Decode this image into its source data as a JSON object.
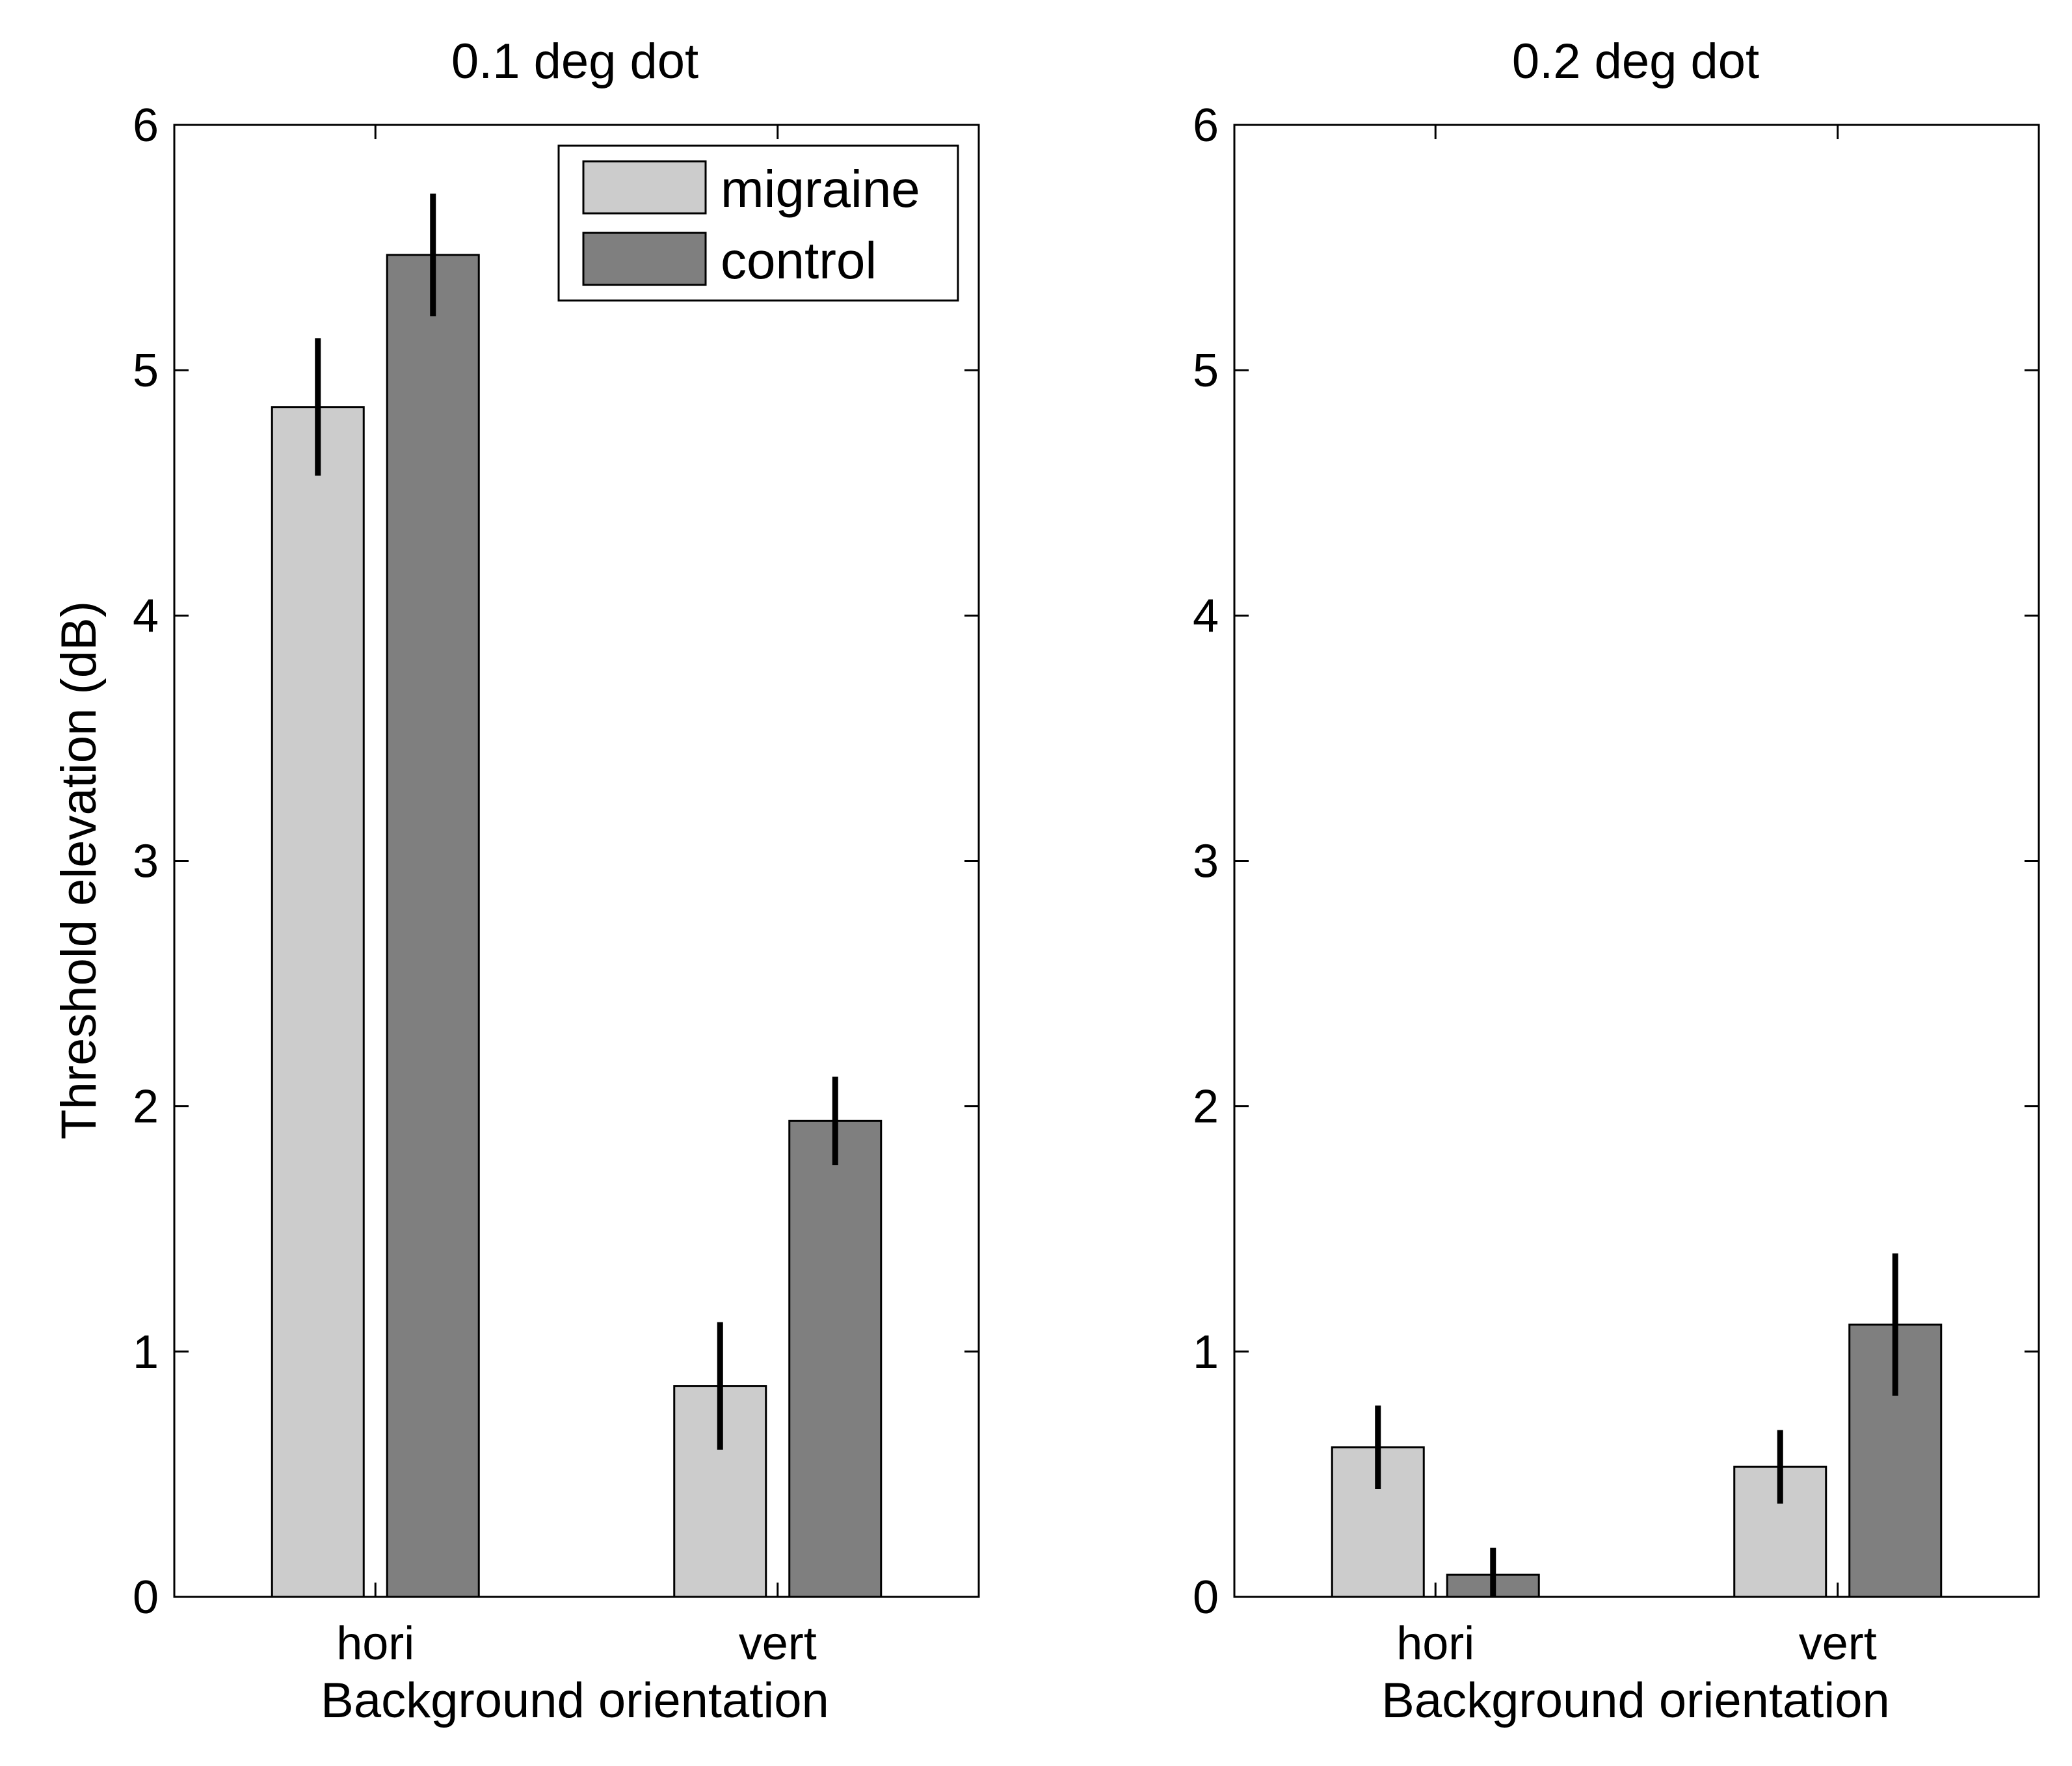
{
  "colors": {
    "migraine": "#cccccc",
    "control": "#7f7f7f",
    "axis": "#000000",
    "background": "#ffffff"
  },
  "legend": {
    "entries": [
      "migraine",
      "control"
    ]
  },
  "chart_data": [
    {
      "type": "bar",
      "title": "0.1 deg dot",
      "xlabel": "Background orientation",
      "ylabel": "Threshold elevation (dB)",
      "categories": [
        "hori",
        "vert"
      ],
      "ylim": [
        0,
        6
      ],
      "yticks": [
        "0",
        "1",
        "2",
        "3",
        "4",
        "5",
        "6"
      ],
      "legend_position": "top-right",
      "series": [
        {
          "name": "migraine",
          "values": [
            4.85,
            0.86
          ],
          "errors": [
            0.28,
            0.26
          ]
        },
        {
          "name": "control",
          "values": [
            5.47,
            1.94
          ],
          "errors": [
            0.25,
            0.18
          ]
        }
      ]
    },
    {
      "type": "bar",
      "title": "0.2 deg dot",
      "xlabel": "Background orientation",
      "ylabel": "",
      "categories": [
        "hori",
        "vert"
      ],
      "ylim": [
        0,
        6
      ],
      "yticks": [
        "0",
        "1",
        "2",
        "3",
        "4",
        "5",
        "6"
      ],
      "series": [
        {
          "name": "migraine",
          "values": [
            0.61,
            0.53
          ],
          "errors": [
            0.17,
            0.15
          ]
        },
        {
          "name": "control",
          "values": [
            0.09,
            1.11
          ],
          "errors": [
            0.11,
            0.29
          ]
        }
      ]
    }
  ]
}
